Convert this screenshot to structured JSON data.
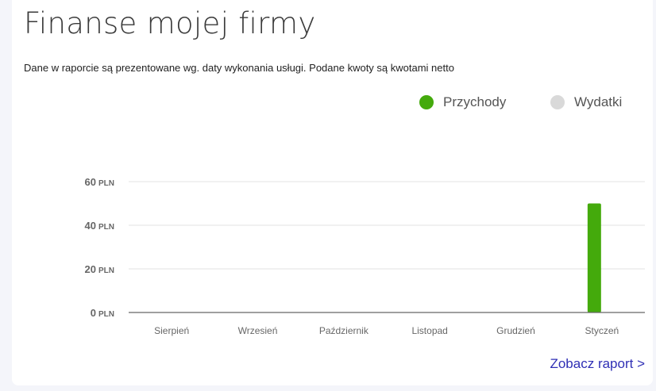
{
  "header": {
    "title": "Finanse mojej firmy",
    "subtitle": "Dane w raporcie są prezentowane wg. daty wykonania usługi. Podane kwoty są kwotami netto"
  },
  "footer": {
    "link_label": "Zobacz raport >"
  },
  "colors": {
    "przychody": "#44aa0c",
    "wydatki": "#d9d9d9",
    "link": "#2f2fb5"
  },
  "chart_data": {
    "type": "bar",
    "categories": [
      "Sierpień",
      "Wrzesień",
      "Październik",
      "Listopad",
      "Grudzień",
      "Styczeń"
    ],
    "series": [
      {
        "name": "Przychody",
        "values": [
          0,
          0,
          0,
          0,
          0,
          50
        ]
      },
      {
        "name": "Wydatki",
        "values": [
          0,
          0,
          0,
          0,
          0,
          0
        ]
      }
    ],
    "yticks": [
      {
        "value": 0,
        "num": "0",
        "unit": "PLN"
      },
      {
        "value": 20,
        "num": "20",
        "unit": "PLN"
      },
      {
        "value": 40,
        "num": "40",
        "unit": "PLN"
      },
      {
        "value": 60,
        "num": "60",
        "unit": "PLN"
      }
    ],
    "ylim": [
      0,
      60
    ],
    "grid": true,
    "legend": "top-right"
  }
}
